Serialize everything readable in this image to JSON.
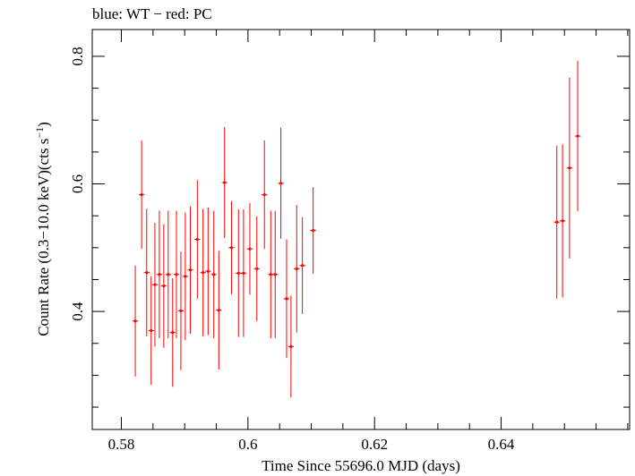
{
  "chart_data": {
    "type": "scatter",
    "title": "blue: WT − red: PC",
    "xlabel": "Time Since 55696.0 MJD (days)",
    "ylabel": "Count Rate (0.3−10.0 keV)(cts s",
    "ylabel_sup": "−1",
    "ylabel_close": ")",
    "xlim": [
      0.5754,
      0.6603
    ],
    "ylim": [
      0.215,
      0.842
    ],
    "x_ticks": [
      0.58,
      0.6,
      0.62,
      0.64
    ],
    "x_tick_labels": [
      "0.58",
      "0.6",
      "0.62",
      "0.64"
    ],
    "x_minor_step": 0.005,
    "y_ticks": [
      0.4,
      0.6,
      0.8
    ],
    "y_tick_labels": [
      "0.4",
      "0.6",
      "0.8"
    ],
    "y_minor_step": 0.05,
    "series": [
      {
        "name": "PC",
        "color": "#ff0000",
        "x_halfwidth": 0.00045,
        "points": [
          {
            "x": 0.5822,
            "y": 0.385,
            "err": 0.087
          },
          {
            "x": 0.5832,
            "y": 0.583,
            "err": 0.085
          },
          {
            "x": 0.584,
            "y": 0.461,
            "err": 0.1
          },
          {
            "x": 0.5847,
            "y": 0.37,
            "err": 0.085
          },
          {
            "x": 0.5853,
            "y": 0.442,
            "err": 0.097
          },
          {
            "x": 0.586,
            "y": 0.458,
            "err": 0.1
          },
          {
            "x": 0.5867,
            "y": 0.44,
            "err": 0.097
          },
          {
            "x": 0.5874,
            "y": 0.458,
            "err": 0.1
          },
          {
            "x": 0.5881,
            "y": 0.367,
            "err": 0.085
          },
          {
            "x": 0.5887,
            "y": 0.458,
            "err": 0.1
          },
          {
            "x": 0.5894,
            "y": 0.401,
            "err": 0.093
          },
          {
            "x": 0.5901,
            "y": 0.455,
            "err": 0.1
          },
          {
            "x": 0.5909,
            "y": 0.465,
            "err": 0.1
          },
          {
            "x": 0.592,
            "y": 0.513,
            "err": 0.093
          },
          {
            "x": 0.5929,
            "y": 0.461,
            "err": 0.1
          },
          {
            "x": 0.5937,
            "y": 0.463,
            "err": 0.1
          },
          {
            "x": 0.5946,
            "y": 0.458,
            "err": 0.1
          },
          {
            "x": 0.5954,
            "y": 0.402,
            "err": 0.093
          },
          {
            "x": 0.5963,
            "y": 0.602,
            "err": 0.087
          },
          {
            "x": 0.5974,
            "y": 0.5,
            "err": 0.073
          },
          {
            "x": 0.5985,
            "y": 0.46,
            "err": 0.1
          },
          {
            "x": 0.5993,
            "y": 0.46,
            "err": 0.1
          },
          {
            "x": 0.6003,
            "y": 0.498,
            "err": 0.072
          },
          {
            "x": 0.6014,
            "y": 0.467,
            "err": 0.082
          },
          {
            "x": 0.6026,
            "y": 0.583,
            "err": 0.085
          },
          {
            "x": 0.6036,
            "y": 0.458,
            "err": 0.1
          },
          {
            "x": 0.6043,
            "y": 0.458,
            "err": 0.1
          },
          {
            "x": 0.6052,
            "y": 0.601,
            "err": 0.087
          },
          {
            "x": 0.6061,
            "y": 0.42,
            "err": 0.093
          },
          {
            "x": 0.6068,
            "y": 0.345,
            "err": 0.08
          },
          {
            "x": 0.6077,
            "y": 0.467,
            "err": 0.1
          },
          {
            "x": 0.6086,
            "y": 0.472,
            "err": 0.076
          },
          {
            "x": 0.6103,
            "y": 0.527,
            "err": 0.068
          },
          {
            "x": 0.6488,
            "y": 0.54,
            "err": 0.12
          },
          {
            "x": 0.6497,
            "y": 0.542,
            "err": 0.12
          },
          {
            "x": 0.6508,
            "y": 0.625,
            "err": 0.142
          },
          {
            "x": 0.6521,
            "y": 0.675,
            "err": 0.118
          }
        ]
      }
    ]
  }
}
